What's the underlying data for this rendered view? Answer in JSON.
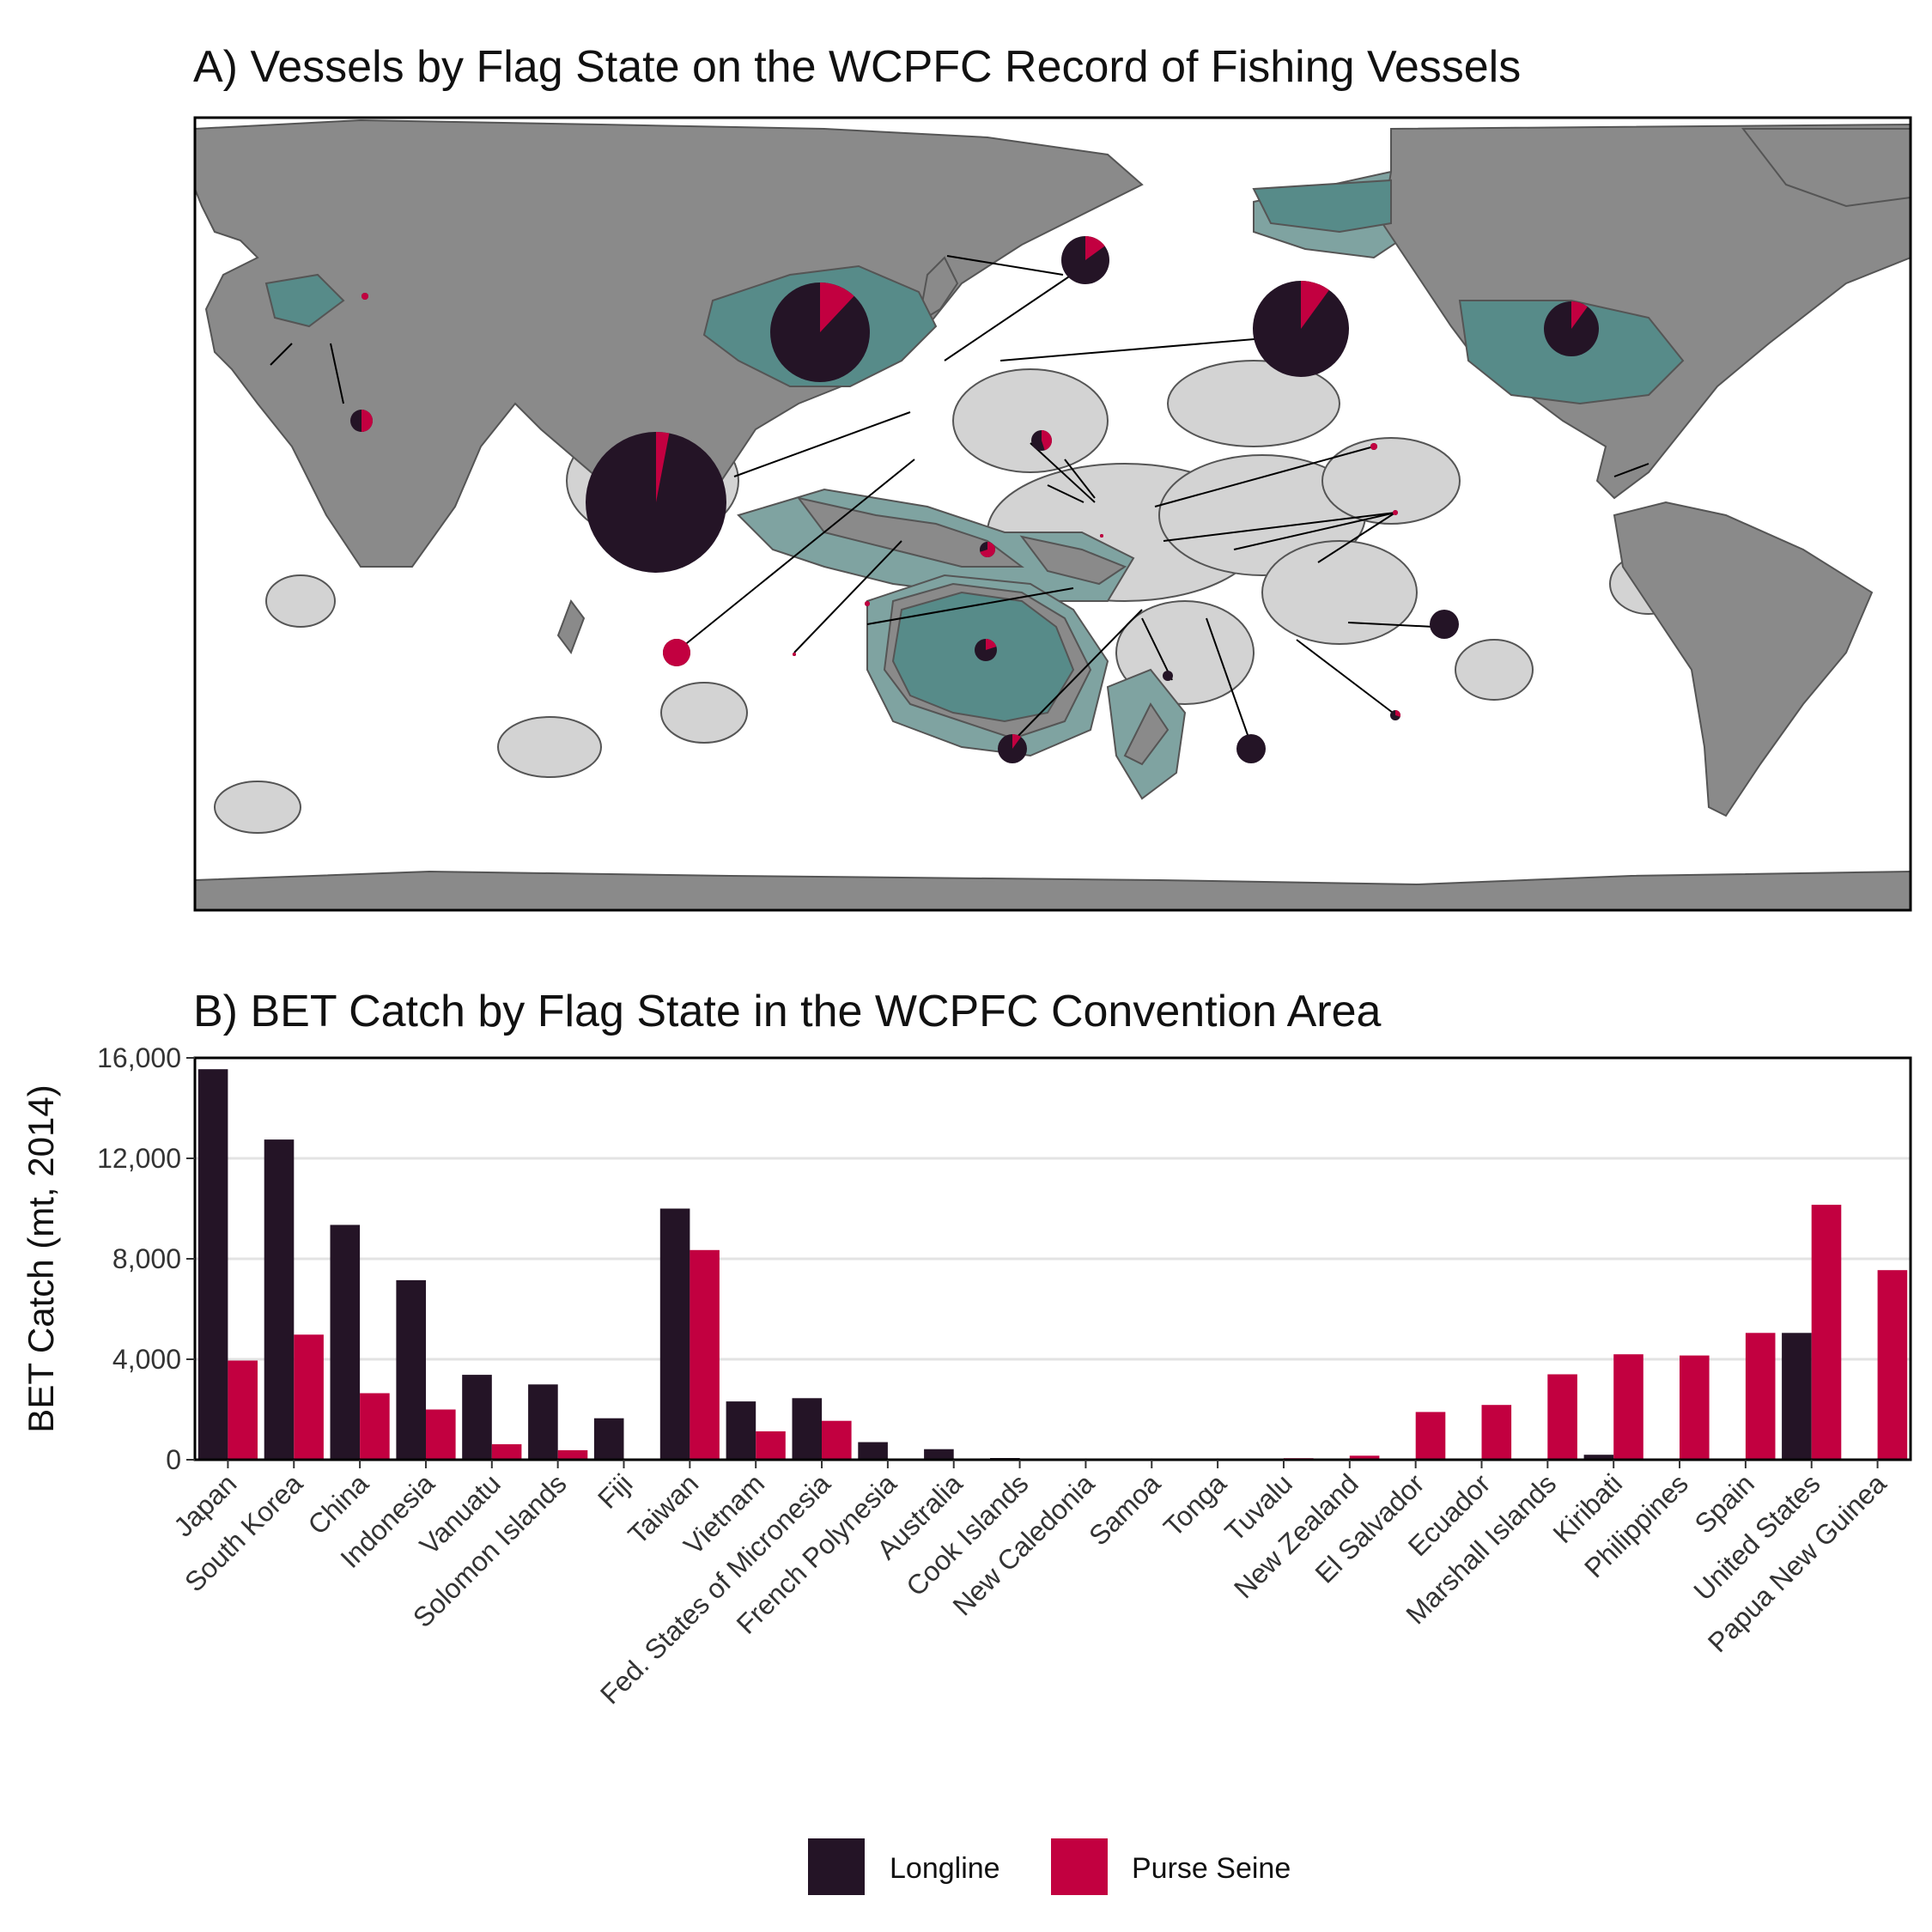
{
  "panel_a": {
    "title": "A) Vessels by Flag State on the WCPFC Record of Fishing Vessels",
    "colors": {
      "ocean": "#ffffff",
      "land": "#8a8a8a",
      "land_stroke": "#555555",
      "eez": "#d3d3d3",
      "wcpfc_member_land": "#578b89",
      "wcpfc_member_eez": "#7fa3a1",
      "leader_line": "#000000"
    }
  },
  "chart_data": {
    "type": "bar",
    "title": "B) BET Catch by Flag State in the WCPFC Convention Area",
    "xlabel": "",
    "ylabel": "BET Catch (mt, 2014)",
    "ylim": [
      0,
      16000
    ],
    "yticks": [
      0,
      4000,
      8000,
      12000,
      16000
    ],
    "ytick_labels": [
      "0",
      "4,000",
      "8,000",
      "12,000",
      "16,000"
    ],
    "grid": "horizontal",
    "legend_position": "bottom",
    "categories": [
      "Japan",
      "South Korea",
      "China",
      "Indonesia",
      "Vanuatu",
      "Solomon Islands",
      "Fiji",
      "Taiwan",
      "Vietnam",
      "Fed. States of Micronesia",
      "French Polynesia",
      "Australia",
      "Cook Islands",
      "New Caledonia",
      "Samoa",
      "Tonga",
      "Tuvalu",
      "New Zealand",
      "El Salvador",
      "Ecuador",
      "Marshall Islands",
      "Kiribati",
      "Philippines",
      "Spain",
      "United States",
      "Papua New Guinea"
    ],
    "series": [
      {
        "name": "Longline",
        "color": "#241426",
        "values": [
          15550,
          12750,
          9350,
          7150,
          3380,
          3000,
          1650,
          10000,
          2320,
          2450,
          700,
          420,
          70,
          50,
          30,
          40,
          0,
          0,
          0,
          0,
          0,
          200,
          0,
          0,
          5050,
          0
        ]
      },
      {
        "name": "Purse Seine",
        "color": "#c20040",
        "values": [
          3950,
          4980,
          2650,
          2000,
          620,
          380,
          0,
          8350,
          1130,
          1550,
          0,
          0,
          0,
          0,
          0,
          0,
          60,
          160,
          1900,
          2180,
          3400,
          4200,
          4150,
          5050,
          10150,
          7550
        ]
      }
    ]
  }
}
